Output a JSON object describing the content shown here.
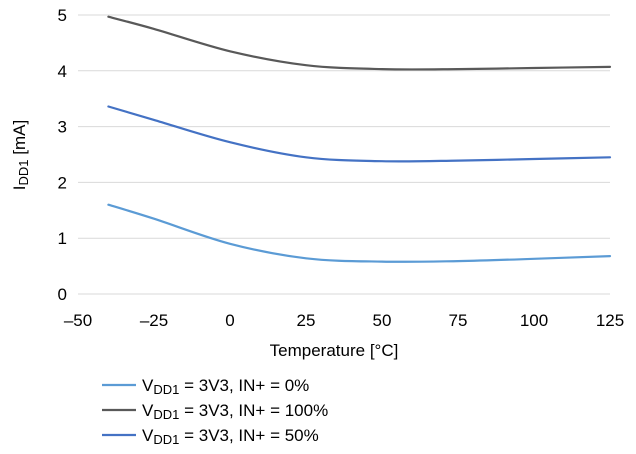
{
  "chart_data": {
    "type": "line",
    "xlabel": "Temperature [°C]",
    "ylabel": {
      "base": "I",
      "sub": "DD1",
      "rest": " [mA]"
    },
    "xlim": [
      -50,
      125
    ],
    "ylim": [
      0,
      5
    ],
    "xticks": [
      "–50",
      "–25",
      "0",
      "25",
      "50",
      "75",
      "100",
      "125"
    ],
    "yticks": [
      "0",
      "1",
      "2",
      "3",
      "4",
      "5"
    ],
    "grid": "horizontal",
    "legend_placement": "bottom",
    "x": [
      -40,
      -25,
      0,
      25,
      50,
      75,
      100,
      125
    ],
    "series": [
      {
        "name": {
          "base": "V",
          "sub": "DD1",
          "rest": " = 3V3, IN+ = 0%"
        },
        "color": "#5b9bd5",
        "values": [
          1.6,
          1.35,
          0.9,
          0.64,
          0.58,
          0.59,
          0.63,
          0.68
        ]
      },
      {
        "name": {
          "base": "V",
          "sub": "DD1",
          "rest": " = 3V3, IN+ = 100%"
        },
        "color": "#595959",
        "values": [
          4.97,
          4.75,
          4.35,
          4.1,
          4.03,
          4.03,
          4.05,
          4.07
        ]
      },
      {
        "name": {
          "base": "V",
          "sub": "DD1",
          "rest": " = 3V3, IN+ = 50%"
        },
        "color": "#4472c4",
        "values": [
          3.36,
          3.12,
          2.72,
          2.45,
          2.38,
          2.39,
          2.42,
          2.45
        ]
      }
    ]
  }
}
